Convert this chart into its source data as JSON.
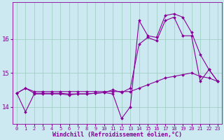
{
  "xlabel": "Windchill (Refroidissement éolien,°C)",
  "bg_color": "#cce8f0",
  "grid_color": "#99ccbb",
  "line_color": "#880099",
  "xlim": [
    -0.5,
    23.5
  ],
  "ylim": [
    13.5,
    17.1
  ],
  "yticks": [
    14,
    15,
    16
  ],
  "xticks": [
    0,
    1,
    2,
    3,
    4,
    5,
    6,
    7,
    8,
    9,
    10,
    11,
    12,
    13,
    14,
    15,
    16,
    17,
    18,
    19,
    20,
    21,
    22,
    23
  ],
  "line1_x": [
    0,
    1,
    2,
    3,
    4,
    5,
    6,
    7,
    8,
    9,
    10,
    11,
    12,
    13,
    14,
    15,
    16,
    17,
    18,
    19,
    20,
    21,
    22,
    23
  ],
  "line1_y": [
    14.4,
    14.55,
    14.45,
    14.45,
    14.45,
    14.45,
    14.45,
    14.45,
    14.45,
    14.45,
    14.45,
    14.45,
    14.45,
    14.45,
    14.55,
    14.65,
    14.75,
    14.85,
    14.9,
    14.95,
    15.0,
    14.9,
    14.85,
    14.75
  ],
  "line2_x": [
    0,
    1,
    2,
    3,
    4,
    5,
    6,
    7,
    8,
    9,
    10,
    11,
    12,
    13,
    14,
    15,
    16,
    17,
    18,
    19,
    20,
    21,
    22,
    23
  ],
  "line2_y": [
    14.4,
    14.55,
    14.4,
    14.4,
    14.4,
    14.4,
    14.38,
    14.38,
    14.38,
    14.4,
    14.42,
    14.5,
    14.42,
    14.55,
    15.85,
    16.05,
    15.95,
    16.55,
    16.65,
    16.1,
    16.1,
    14.75,
    15.1,
    14.75
  ],
  "line3_x": [
    0,
    1,
    2,
    3,
    4,
    5,
    6,
    7,
    8,
    9,
    10,
    11,
    12,
    13,
    14,
    15,
    16,
    17,
    18,
    19,
    20,
    21,
    22,
    23
  ],
  "line3_y": [
    14.4,
    13.85,
    14.38,
    14.38,
    14.38,
    14.38,
    14.35,
    14.38,
    14.38,
    14.4,
    14.42,
    14.38,
    13.65,
    14.0,
    16.55,
    16.1,
    16.05,
    16.7,
    16.75,
    16.65,
    16.2,
    15.55,
    15.1,
    14.75
  ],
  "marker": "D",
  "markersize": 2.0,
  "linewidth": 0.8,
  "tick_fontsize": 5.0,
  "xlabel_fontsize": 6.0
}
